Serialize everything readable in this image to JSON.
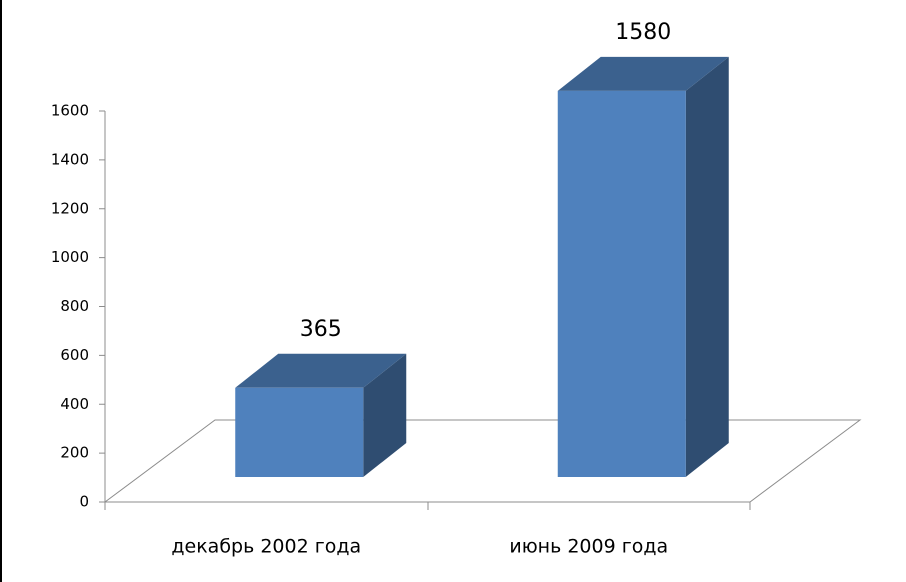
{
  "chart_data": {
    "type": "bar3d",
    "categories": [
      "декабрь 2002 года",
      "июнь 2009 года"
    ],
    "values": [
      365,
      1580
    ],
    "color": "#4f81bd",
    "ylim": [
      0,
      1600
    ],
    "yticks": [
      0,
      200,
      400,
      600,
      800,
      1000,
      1200,
      1400,
      1600
    ]
  }
}
